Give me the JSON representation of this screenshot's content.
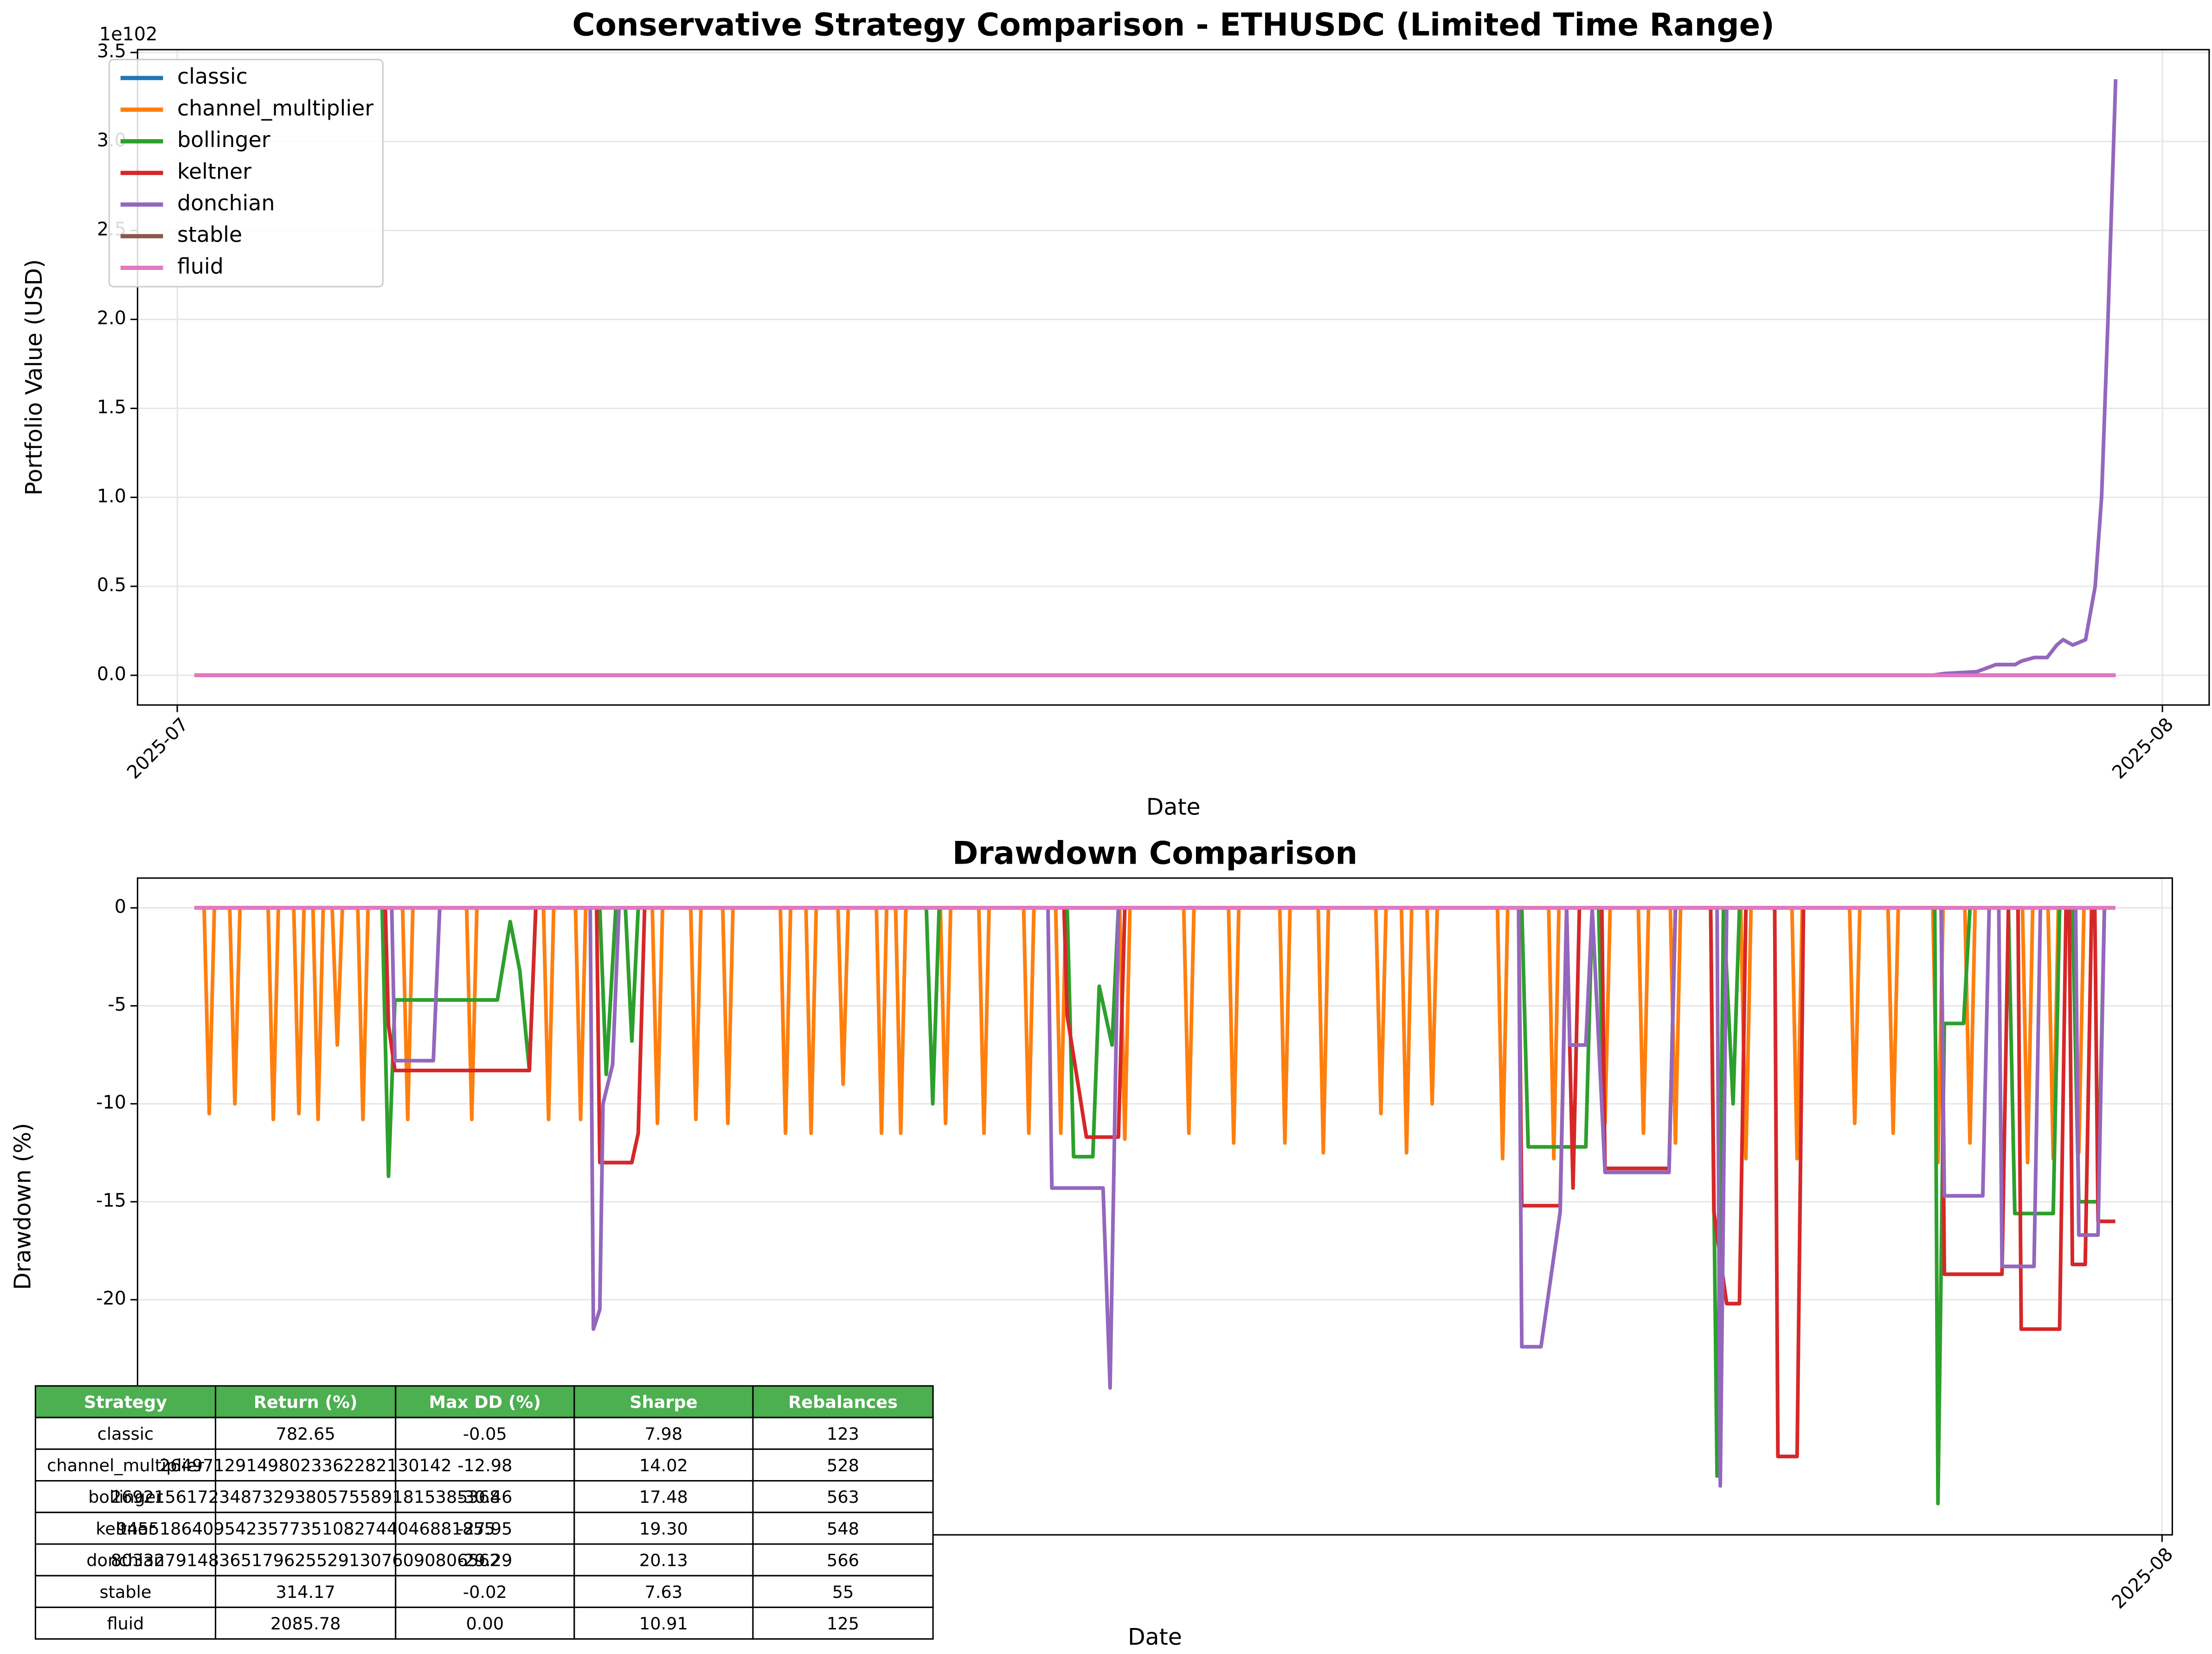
{
  "chart_data": [
    {
      "type": "line",
      "title": "Conservative Strategy Comparison - ETHUSDC (Limited Time Range)",
      "y_label": "Portfolio Value (USD)",
      "x_label": "Date",
      "y_offset_label": "1e102",
      "xlim": [
        -0.62,
        31.73
      ],
      "xticks": [
        {
          "value": 0,
          "label": "2025-07"
        },
        {
          "value": 31,
          "label": "2025-08"
        }
      ],
      "ylim": [
        -0.167,
        3.516
      ],
      "yticks": [
        {
          "value": 0,
          "label": "0.0"
        },
        0.5,
        {
          "value": 1,
          "label": "1.0"
        },
        1.5,
        {
          "value": 2,
          "label": "2.0"
        },
        2.5,
        {
          "value": 3,
          "label": "3.0"
        },
        3.5
      ],
      "grid": true,
      "legend": "upper left",
      "series": [
        {
          "name": "classic",
          "color": "#1f77b4",
          "x": [
            0.27,
            30.27
          ],
          "values": [
            0,
            0
          ]
        },
        {
          "name": "channel_multiplier",
          "color": "#ff7f0e",
          "x": [
            0.27,
            30.27
          ],
          "values": [
            0,
            0
          ]
        },
        {
          "name": "bollinger",
          "color": "#2ca02c",
          "x": [
            0.27,
            30.27
          ],
          "values": [
            0,
            0
          ]
        },
        {
          "name": "keltner",
          "color": "#d62728",
          "x": [
            0.27,
            30.27
          ],
          "values": [
            0,
            0
          ]
        },
        {
          "name": "donchian",
          "color": "#9467bd",
          "x": [
            0.27,
            27.4,
            27.6,
            28.1,
            28.4,
            28.7,
            28.8,
            29.0,
            29.2,
            29.35,
            29.45,
            29.6,
            29.8,
            29.95,
            30.05,
            30.15,
            30.27
          ],
          "values": [
            0,
            0,
            0.01,
            0.02,
            0.06,
            0.06,
            0.08,
            0.1,
            0.1,
            0.17,
            0.2,
            0.17,
            0.2,
            0.5,
            1.0,
            2.0,
            3.35
          ]
        },
        {
          "name": "stable",
          "color": "#8c564b",
          "x": [
            0.27,
            30.27
          ],
          "values": [
            0,
            0
          ]
        },
        {
          "name": "fluid",
          "color": "#e377c2",
          "x": [
            0.27,
            30.27
          ],
          "values": [
            0,
            0
          ]
        }
      ]
    },
    {
      "type": "line",
      "title": "Drawdown Comparison",
      "y_label": "Drawdown (%)",
      "x_label": "Date",
      "xlim": [
        -0.62,
        31.16
      ],
      "xticks": [
        {
          "value": 31,
          "label": "2025-08"
        }
      ],
      "ylim": [
        -32.0,
        1.52
      ],
      "yticks": [
        0,
        -5,
        -10,
        -15,
        -20
      ],
      "grid": true,
      "legend": "lower left",
      "series": [
        {
          "name": "classic",
          "color": "#1f77b4",
          "x": [
            0.27,
            30.27
          ],
          "values": [
            0,
            0
          ]
        },
        {
          "name": "channel_multiplier",
          "color": "#ff7f0e",
          "x": [
            0.27,
            0.42,
            0.5,
            0.58,
            0.82,
            0.9,
            0.98,
            1.42,
            1.5,
            1.58,
            1.82,
            1.9,
            1.98,
            2.12,
            2.2,
            2.28,
            2.42,
            2.5,
            2.58,
            2.82,
            2.9,
            2.98,
            3.52,
            3.6,
            3.68,
            4.52,
            4.6,
            4.68,
            5.72,
            5.8,
            5.88,
            6.22,
            6.3,
            6.38,
            7.42,
            7.5,
            7.58,
            8.02,
            8.1,
            8.18,
            8.52,
            8.6,
            8.68,
            9.42,
            9.5,
            9.58,
            9.82,
            9.9,
            9.98,
            10.32,
            10.4,
            10.48,
            10.92,
            11.0,
            11.08,
            11.22,
            11.3,
            11.38,
            11.92,
            12.0,
            12.08,
            12.52,
            12.6,
            12.68,
            13.22,
            13.3,
            13.38,
            13.72,
            13.8,
            13.88,
            14.72,
            14.8,
            14.88,
            15.72,
            15.8,
            15.88,
            16.42,
            16.5,
            16.58,
            17.22,
            17.3,
            17.38,
            17.82,
            17.9,
            17.98,
            18.72,
            18.8,
            18.88,
            19.12,
            19.2,
            19.28,
            19.52,
            19.6,
            19.68,
            20.62,
            20.7,
            20.78,
            21.42,
            21.5,
            21.58,
            22.22,
            22.3,
            22.38,
            22.82,
            22.9,
            22.98,
            23.32,
            23.4,
            23.48,
            24.42,
            24.5,
            24.58,
            25.22,
            25.3,
            25.38,
            26.12,
            26.2,
            26.28,
            26.72,
            26.8,
            26.88,
            27.42,
            27.5,
            27.58,
            27.92,
            28.0,
            28.08,
            28.82,
            28.9,
            28.98,
            29.22,
            29.3,
            29.38,
            29.62,
            29.7,
            29.78,
            30.27
          ],
          "values": [
            0,
            0,
            -10.5,
            0,
            0,
            -10,
            0,
            0,
            -10.8,
            0,
            0,
            -10.5,
            0,
            0,
            -10.8,
            0,
            0,
            -7,
            0,
            0,
            -10.8,
            0,
            0,
            -10.8,
            0,
            0,
            -10.8,
            0,
            0,
            -10.8,
            0,
            0,
            -10.8,
            0,
            0,
            -11,
            0,
            0,
            -10.8,
            0,
            0,
            -11,
            0,
            0,
            -11.5,
            0,
            0,
            -11.5,
            0,
            0,
            -9,
            0,
            0,
            -11.5,
            0,
            0,
            -11.5,
            0,
            0,
            -11,
            0,
            0,
            -11.5,
            0,
            0,
            -11.5,
            0,
            0,
            -11.5,
            0,
            0,
            -11.8,
            0,
            0,
            -11.5,
            0,
            0,
            -12,
            0,
            0,
            -12,
            0,
            0,
            -12.5,
            0,
            0,
            -10.5,
            0,
            0,
            -12.5,
            0,
            0,
            -10,
            0,
            0,
            -12.8,
            0,
            0,
            -12.8,
            0,
            0,
            -11,
            0,
            0,
            -11.5,
            0,
            0,
            -12,
            0,
            0,
            -12.8,
            0,
            0,
            -12.8,
            0,
            0,
            -11,
            0,
            0,
            -11.5,
            0,
            0,
            -13,
            0,
            0,
            -12,
            0,
            0,
            -13,
            0,
            0,
            -12.8,
            0,
            0,
            -12.5,
            0,
            0
          ]
        },
        {
          "name": "bollinger",
          "color": "#2ca02c",
          "x": [
            0.27,
            3.2,
            3.3,
            3.4,
            5.0,
            5.2,
            5.35,
            5.5,
            5.6,
            6.6,
            6.7,
            6.85,
            7.0,
            7.1,
            7.2,
            11.7,
            11.8,
            11.9,
            13.9,
            14.0,
            14.3,
            14.4,
            14.6,
            14.7,
            21.0,
            21.1,
            22.0,
            22.1,
            22.2,
            22.3,
            23.3,
            23.4,
            23.95,
            24.05,
            24.15,
            24.3,
            24.4,
            27.45,
            27.5,
            27.6,
            27.9,
            28.0,
            28.6,
            28.7,
            29.3,
            29.4,
            29.6,
            29.7,
            30.0,
            30.1,
            30.27
          ],
          "values": [
            0,
            0,
            -13.7,
            -4.7,
            -4.7,
            -0.7,
            -3.2,
            -8.3,
            0,
            0,
            -8.5,
            0,
            0,
            -6.8,
            0,
            0,
            -10,
            0,
            0,
            -12.7,
            -12.7,
            -4,
            -7,
            0,
            0,
            -12.2,
            -12.2,
            0,
            0,
            -13.3,
            -13.3,
            0,
            0,
            -29,
            0,
            -10,
            0,
            0,
            -30.4,
            -5.9,
            -5.9,
            0,
            0,
            -15.6,
            -15.6,
            0,
            0,
            -15,
            -15,
            0,
            0
          ]
        },
        {
          "name": "keltner",
          "color": "#d62728",
          "x": [
            0.27,
            3.25,
            3.3,
            3.4,
            5.5,
            5.6,
            6.55,
            6.6,
            7.1,
            7.2,
            7.3,
            13.85,
            13.9,
            14.2,
            14.7,
            14.8,
            20.95,
            21.0,
            21.6,
            21.7,
            21.8,
            21.9,
            22.25,
            22.3,
            23.3,
            23.4,
            23.95,
            24.0,
            24.2,
            24.4,
            24.5,
            24.95,
            25.0,
            25.3,
            25.4,
            27.55,
            27.6,
            28.5,
            28.6,
            28.75,
            28.8,
            29.4,
            29.5,
            29.55,
            29.6,
            29.8,
            29.9,
            29.95,
            30.0,
            30.27
          ],
          "values": [
            0,
            0,
            -6,
            -8.3,
            -8.3,
            0,
            0,
            -13,
            -13,
            -11.5,
            0,
            0,
            -5.5,
            -11.7,
            -11.7,
            0,
            0,
            -15.2,
            -15.2,
            0,
            -14.3,
            0,
            0,
            -13.3,
            -13.3,
            0,
            0,
            -15.5,
            -20.2,
            -20.2,
            0,
            0,
            -28,
            -28,
            0,
            0,
            -18.7,
            -18.7,
            0,
            0,
            -21.5,
            -21.5,
            0,
            0,
            -18.2,
            -18.2,
            0,
            0,
            -16,
            -16
          ]
        },
        {
          "name": "donchian",
          "color": "#9467bd",
          "x": [
            0.27,
            3.35,
            3.4,
            4.0,
            4.1,
            6.45,
            6.5,
            6.6,
            6.65,
            6.8,
            6.9,
            7.0,
            13.6,
            13.66,
            14.46,
            14.57,
            14.7,
            20.95,
            21.0,
            21.3,
            21.6,
            21.7,
            21.75,
            22.0,
            22.1,
            22.3,
            23.3,
            23.4,
            24.05,
            24.1,
            24.2,
            27.55,
            27.6,
            28.2,
            28.3,
            28.45,
            28.5,
            29.0,
            29.1,
            29.65,
            29.7,
            30.0,
            30.1,
            30.27
          ],
          "values": [
            0,
            0,
            -7.8,
            -7.8,
            0,
            0,
            -21.5,
            -20.5,
            -10,
            -8,
            0,
            0,
            0,
            -14.3,
            -14.3,
            -24.5,
            0,
            0,
            -22.4,
            -22.4,
            -15.5,
            0,
            -7,
            -7,
            0,
            -13.5,
            -13.5,
            0,
            0,
            -29.5,
            0,
            0,
            -14.7,
            -14.7,
            0,
            0,
            -18.3,
            -18.3,
            0,
            0,
            -16.7,
            -16.7,
            0,
            0
          ]
        },
        {
          "name": "stable",
          "color": "#8c564b",
          "x": [
            0.27,
            30.27
          ],
          "values": [
            0,
            0
          ]
        },
        {
          "name": "fluid",
          "color": "#e377c2",
          "x": [
            0.27,
            30.27
          ],
          "values": [
            0,
            0
          ]
        }
      ]
    }
  ],
  "table": {
    "header_color": "#4caf50",
    "columns": [
      "Strategy",
      "Return (%)",
      "Max DD (%)",
      "Sharpe",
      "Rebalances"
    ],
    "rows": [
      [
        "classic",
        "782.65",
        "-0.05",
        "7.98",
        "123"
      ],
      [
        "channel_multiplier",
        "264971291498023362282130142",
        "-12.98",
        "14.02",
        "528"
      ],
      [
        "bollinger",
        "269215617234873293805755891815385368",
        "-30.46",
        "17.48",
        "563"
      ],
      [
        "keltner",
        "94551864095423577351082744046881855",
        "-27.95",
        "19.30",
        "548"
      ],
      [
        "donchian",
        "803327914836517962552913076090806562",
        "-29.29",
        "20.13",
        "566"
      ],
      [
        "stable",
        "314.17",
        "-0.02",
        "7.63",
        "55"
      ],
      [
        "fluid",
        "2085.78",
        "0.00",
        "10.91",
        "125"
      ]
    ]
  }
}
